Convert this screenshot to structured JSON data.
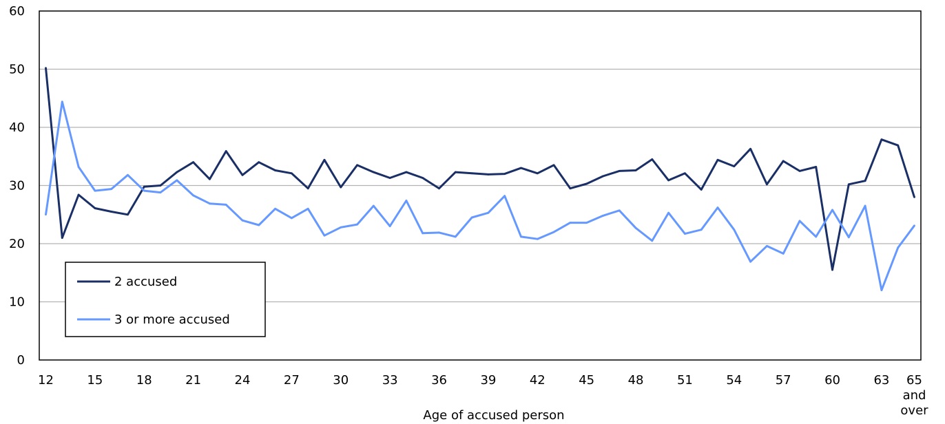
{
  "chart_data": {
    "type": "line",
    "title": "",
    "xlabel": "Age of accused person",
    "ylabel": "",
    "ylim": [
      0,
      60
    ],
    "yticks": [
      0,
      10,
      20,
      30,
      40,
      50,
      60
    ],
    "grid": "horizontal",
    "legend_position": "bottom-left",
    "x": [
      12,
      13,
      14,
      15,
      16,
      17,
      18,
      19,
      20,
      21,
      22,
      23,
      24,
      25,
      26,
      27,
      28,
      29,
      30,
      31,
      32,
      33,
      34,
      35,
      36,
      37,
      38,
      39,
      40,
      41,
      42,
      43,
      44,
      45,
      46,
      47,
      48,
      49,
      50,
      51,
      52,
      53,
      54,
      55,
      56,
      57,
      58,
      59,
      60,
      61,
      62,
      63,
      64,
      65
    ],
    "xtick_labels": [
      {
        "i": 0,
        "label": "12"
      },
      {
        "i": 3,
        "label": "15"
      },
      {
        "i": 6,
        "label": "18"
      },
      {
        "i": 9,
        "label": "21"
      },
      {
        "i": 12,
        "label": "24"
      },
      {
        "i": 15,
        "label": "27"
      },
      {
        "i": 18,
        "label": "30"
      },
      {
        "i": 21,
        "label": "33"
      },
      {
        "i": 24,
        "label": "36"
      },
      {
        "i": 27,
        "label": "39"
      },
      {
        "i": 30,
        "label": "42"
      },
      {
        "i": 33,
        "label": "45"
      },
      {
        "i": 36,
        "label": "48"
      },
      {
        "i": 39,
        "label": "51"
      },
      {
        "i": 42,
        "label": "54"
      },
      {
        "i": 45,
        "label": "57"
      },
      {
        "i": 48,
        "label": "60"
      },
      {
        "i": 51,
        "label": "63"
      },
      {
        "i": 53,
        "label": "65\nand\nover"
      }
    ],
    "series": [
      {
        "name": "2 accused",
        "color": "#1a2f66",
        "values": [
          50.2,
          21.0,
          28.4,
          26.1,
          25.5,
          25.0,
          29.8,
          30.0,
          32.3,
          34.0,
          31.1,
          35.9,
          31.8,
          34.0,
          32.6,
          32.1,
          29.5,
          34.4,
          29.7,
          33.5,
          32.3,
          31.3,
          32.3,
          31.3,
          29.5,
          32.3,
          32.1,
          31.9,
          32.0,
          33.0,
          32.1,
          33.5,
          29.5,
          30.3,
          31.6,
          32.5,
          32.6,
          34.5,
          30.9,
          32.1,
          29.3,
          34.4,
          33.3,
          36.3,
          30.2,
          34.2,
          32.5,
          33.2,
          15.5,
          30.2,
          30.8,
          37.9,
          36.9,
          28.0
        ]
      },
      {
        "name": "3 or more accused",
        "color": "#6699ff",
        "values": [
          25.0,
          44.4,
          33.2,
          29.1,
          29.4,
          31.8,
          29.1,
          28.8,
          30.9,
          28.3,
          26.9,
          26.7,
          24.0,
          23.2,
          26.0,
          24.4,
          26.0,
          21.4,
          22.8,
          23.3,
          26.5,
          23.0,
          27.4,
          21.8,
          21.9,
          21.2,
          24.5,
          25.3,
          28.2,
          21.2,
          20.8,
          22.0,
          23.6,
          23.6,
          24.8,
          25.7,
          22.7,
          20.5,
          25.3,
          21.7,
          22.4,
          26.2,
          22.4,
          16.9,
          19.6,
          18.3,
          23.9,
          21.2,
          25.8,
          21.1,
          26.5,
          12.0,
          19.3,
          23.1
        ]
      }
    ]
  }
}
